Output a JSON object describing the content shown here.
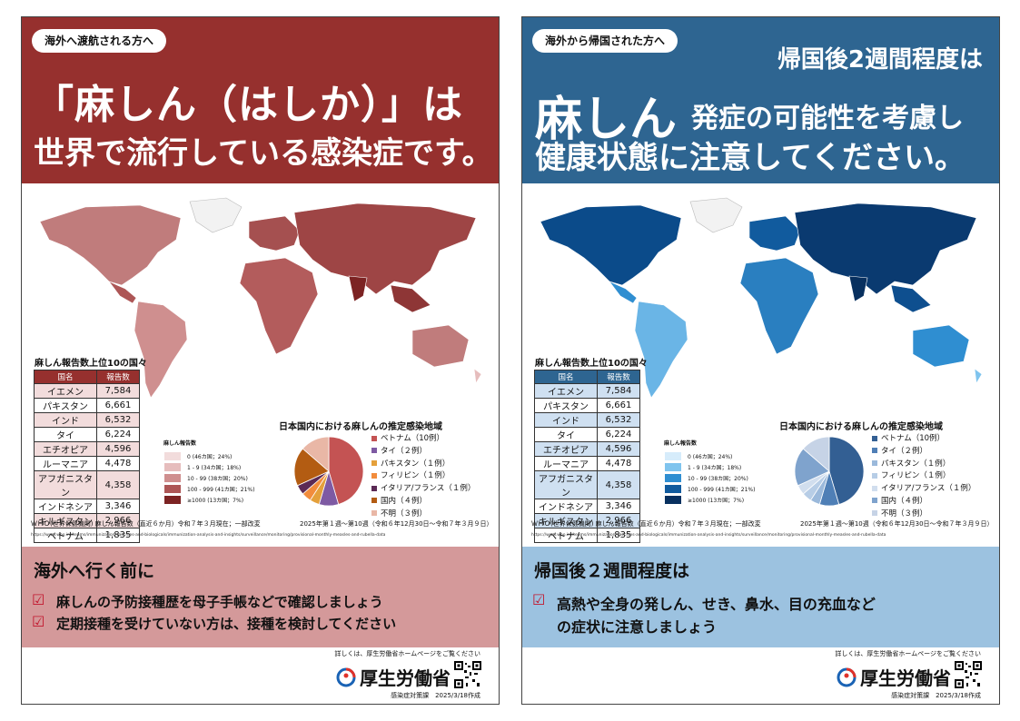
{
  "left": {
    "tag": "海外へ渡航される方へ",
    "headline1": "「麻しん（はしか）」は",
    "headline2": "世界で流行している感染症です。",
    "table_title": "麻しん報告数上位10の国々",
    "table_headers": [
      "国名",
      "報告数"
    ],
    "table_rows": [
      [
        "イエメン",
        "7,584"
      ],
      [
        "パキスタン",
        "6,661"
      ],
      [
        "インド",
        "6,532"
      ],
      [
        "タイ",
        "6,224"
      ],
      [
        "エチオピア",
        "4,596"
      ],
      [
        "ルーマニア",
        "4,478"
      ],
      [
        "アフガニスタン",
        "4,358"
      ],
      [
        "インドネシア",
        "3,346"
      ],
      [
        "キルギスタン",
        "2,966"
      ],
      [
        "ベトナム",
        "1,835"
      ]
    ],
    "legend_title": "麻しん報告数",
    "legend": [
      {
        "label": "0 (46カ国；24%)",
        "color": "#f2dcdc"
      },
      {
        "label": "1 - 9 (34カ国；18%)",
        "color": "#e6bdbd"
      },
      {
        "label": "10 - 99 (38カ国；20%)",
        "color": "#cf8f8f"
      },
      {
        "label": "100 - 999 (41カ国；21%)",
        "color": "#ad5656"
      },
      {
        "label": "≥1000 (13カ国；7%)",
        "color": "#7c2323"
      }
    ],
    "pie_title": "日本国内における麻しんの推定感染地域",
    "pie_legend": [
      {
        "label": "ベトナム（10例）",
        "value": 10,
        "color": "#c45353"
      },
      {
        "label": "タイ（２例）",
        "value": 2,
        "color": "#7e5aa3"
      },
      {
        "label": "パキスタン（１例）",
        "value": 1,
        "color": "#e4a03b"
      },
      {
        "label": "フィリピン（１例）",
        "value": 1,
        "color": "#f28c3c"
      },
      {
        "label": "イタリア/フランス（１例）",
        "value": 1,
        "color": "#5b2a55"
      },
      {
        "label": "国内（４例）",
        "value": 4,
        "color": "#b35c12"
      },
      {
        "label": "不明（３例）",
        "value": 3,
        "color": "#e9b7a6"
      }
    ],
    "source": "ＷＨＯ(世界保健機関) 麻しん報告数（直近６か月）令和７年３月現在；一部改変",
    "period": "2025年第１週〜第10週（令和６年12月30日〜令和７年３月９日）",
    "url": "https://www.who.int/teams/immunization-vaccines-and-biologicals/immunization-analysis-and-insights/surveillance/monitoring/provisional-monthly-measles-and-rubella-data",
    "box_title": "海外へ行く前に",
    "box_items": [
      "麻しんの予防接種歴を母子手帳などで確認しましょう",
      "定期接種を受けていない方は、接種を検討してください"
    ],
    "footer_note": "詳しくは、厚生労働省ホームページをご覧ください",
    "ministry": "厚生労働省",
    "dept": "感染症対策課　2025/3/18作成",
    "colors": {
      "primary": "#96302e",
      "box": "#d4999a",
      "map_low": "#f2dcdc",
      "map_high": "#7c2323"
    }
  },
  "right": {
    "tag": "海外から帰国された方へ",
    "headline1": "帰国後2週間程度は",
    "headline_big": "麻しん",
    "headline2": "発症の可能性を考慮し",
    "headline3": "健康状態に注意してください。",
    "table_title": "麻しん報告数上位10の国々",
    "table_headers": [
      "国名",
      "報告数"
    ],
    "table_rows": [
      [
        "イエメン",
        "7,584"
      ],
      [
        "パキスタン",
        "6,661"
      ],
      [
        "インド",
        "6,532"
      ],
      [
        "タイ",
        "6,224"
      ],
      [
        "エチオピア",
        "4,596"
      ],
      [
        "ルーマニア",
        "4,478"
      ],
      [
        "アフガニスタン",
        "4,358"
      ],
      [
        "インドネシア",
        "3,346"
      ],
      [
        "キルギスタン",
        "2,966"
      ],
      [
        "ベトナム",
        "1,835"
      ]
    ],
    "legend_title": "麻しん報告数",
    "legend": [
      {
        "label": "0 (46カ国；24%)",
        "color": "#d6ecfb"
      },
      {
        "label": "1 - 9 (34カ国；18%)",
        "color": "#7fc4ee"
      },
      {
        "label": "10 - 99 (38カ国；20%)",
        "color": "#2f8ed1"
      },
      {
        "label": "100 - 999 (41カ国；21%)",
        "color": "#115b9e"
      },
      {
        "label": "≥1000 (13カ国；7%)",
        "color": "#08305f"
      }
    ],
    "pie_title": "日本国内における麻しんの推定感染地域",
    "pie_legend": [
      {
        "label": "ベトナム（10例）",
        "value": 10,
        "color": "#335f93"
      },
      {
        "label": "タイ（２例）",
        "value": 2,
        "color": "#4f7fb6"
      },
      {
        "label": "パキスタン（１例）",
        "value": 1,
        "color": "#9bb9db"
      },
      {
        "label": "フィリピン（１例）",
        "value": 1,
        "color": "#b7cde6"
      },
      {
        "label": "イタリア/フランス（１例）",
        "value": 1,
        "color": "#d1deee"
      },
      {
        "label": "国内（４例）",
        "value": 4,
        "color": "#7fa3cd"
      },
      {
        "label": "不明（３例）",
        "value": 3,
        "color": "#c6d3e6"
      }
    ],
    "source": "ＷＨＯ(世界保健機関) 麻しん報告数（直近６か月）令和７年３月現在；一部改変",
    "period": "2025年第１週〜第10週（令和６年12月30日〜令和７年３月９日）",
    "url": "https://www.who.int/teams/immunization-vaccines-and-biologicals/immunization-analysis-and-insights/surveillance/monitoring/provisional-monthly-measles-and-rubella-data",
    "box_title": "帰国後２週間程度は",
    "box_items": [
      "高熱や全身の発しん、せき、鼻水、目の充血など",
      "の症状に注意しましょう"
    ],
    "footer_note": "詳しくは、厚生労働省ホームページをご覧ください",
    "ministry": "厚生労働省",
    "dept": "感染症対策課　2025/3/18作成",
    "colors": {
      "primary": "#2e6591",
      "box": "#9cc2e0",
      "map_low": "#d6ecfb",
      "map_high": "#08305f"
    }
  }
}
